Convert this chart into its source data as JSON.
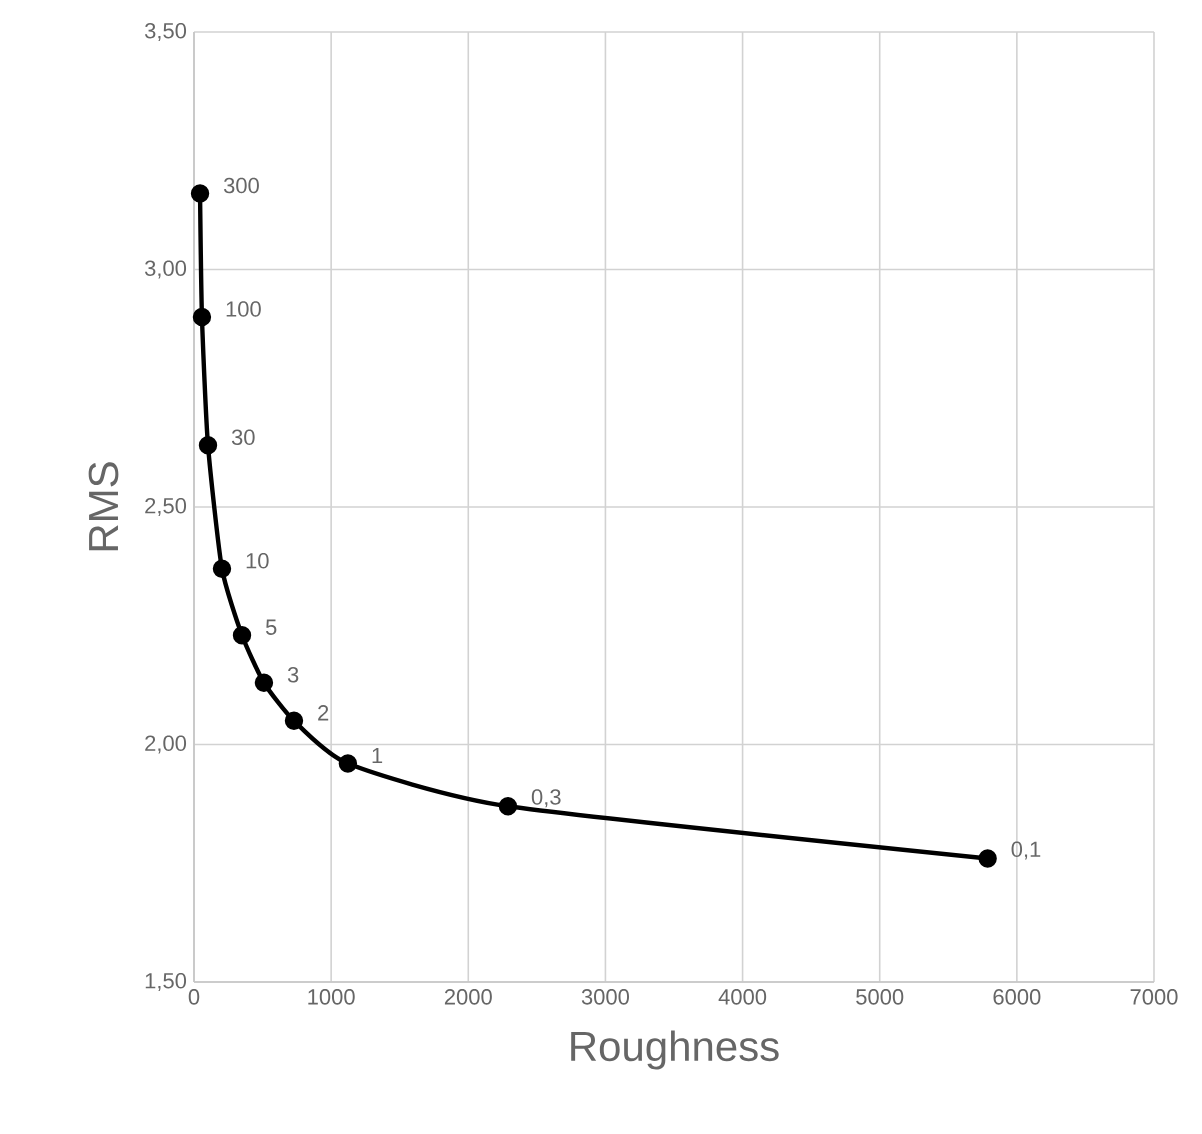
{
  "chart_data": {
    "type": "line",
    "xlabel": "Roughness",
    "ylabel": "RMS",
    "x": [
      44,
      58,
      102,
      204,
      350,
      510,
      729,
      1122,
      2289,
      5787
    ],
    "series": [
      {
        "color": "#000000",
        "values": [
          3.16,
          2.9,
          2.63,
          2.37,
          2.23,
          2.13,
          2.05,
          1.96,
          1.87,
          1.76
        ]
      }
    ],
    "xlim": [
      0,
      7000
    ],
    "ylim": [
      1.5,
      3.5
    ],
    "xticks": [
      0,
      1000,
      2000,
      3000,
      4000,
      5000,
      6000,
      7000
    ],
    "yticks": [
      {
        "value": 1.5,
        "label": "1,50"
      },
      {
        "value": 2.0,
        "label": "2,00"
      },
      {
        "value": 2.5,
        "label": "2,50"
      },
      {
        "value": 3.0,
        "label": "3,00"
      },
      {
        "value": 3.5,
        "label": "3,50"
      }
    ],
    "grid": true,
    "marker": "circle",
    "line_style": "solid",
    "annotations": [
      {
        "text": "300",
        "x": 44,
        "y": 3.16
      },
      {
        "text": "100",
        "x": 58,
        "y": 2.9
      },
      {
        "text": "30",
        "x": 102,
        "y": 2.63
      },
      {
        "text": "10",
        "x": 204,
        "y": 2.37
      },
      {
        "text": "5",
        "x": 350,
        "y": 2.23
      },
      {
        "text": "3",
        "x": 510,
        "y": 2.13
      },
      {
        "text": "2",
        "x": 729,
        "y": 2.05
      },
      {
        "text": "1",
        "x": 1122,
        "y": 1.96
      },
      {
        "text": "0,3",
        "x": 2289,
        "y": 1.87
      },
      {
        "text": "0,1",
        "x": 5787,
        "y": 1.76
      }
    ]
  }
}
